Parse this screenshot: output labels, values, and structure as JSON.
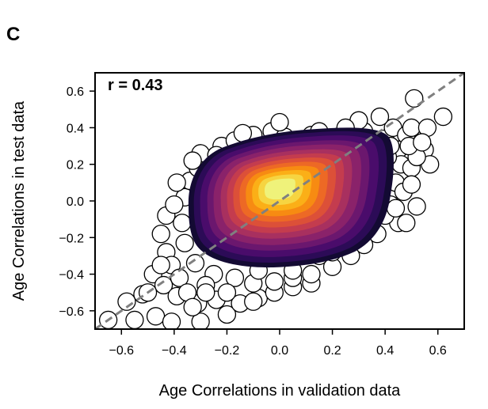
{
  "panel_label": "C",
  "chart_data": {
    "type": "scatter",
    "subtype": "scatter with filled density contours",
    "xlabel": "Age Correlations in validation data",
    "ylabel": "Age Correlations in test data",
    "xlim": [
      -0.7,
      0.7
    ],
    "ylim": [
      -0.7,
      0.7
    ],
    "xticks": [
      -0.6,
      -0.4,
      -0.2,
      0.0,
      0.2,
      0.4,
      0.6
    ],
    "yticks": [
      -0.6,
      -0.4,
      -0.2,
      0.0,
      0.2,
      0.4,
      0.6
    ],
    "xtick_labels": [
      "−0.6",
      "−0.4",
      "−0.2",
      "0.0",
      "0.2",
      "0.4",
      "0.6"
    ],
    "ytick_labels": [
      "−0.6",
      "−0.4",
      "−0.2",
      "0.0",
      "0.2",
      "0.4",
      "0.6"
    ],
    "annotation": "r = 0.43",
    "grid": false,
    "identity_line": {
      "x": [
        -0.7,
        0.7
      ],
      "y": [
        -0.7,
        0.7
      ],
      "color": "#808080",
      "style": "dashed"
    },
    "marker": {
      "face": "#ffffff",
      "edge": "#000000"
    },
    "density_colormap": "inferno",
    "points": [
      [
        -0.65,
        -0.65
      ],
      [
        -0.55,
        -0.65
      ],
      [
        -0.47,
        -0.63
      ],
      [
        -0.41,
        -0.66
      ],
      [
        -0.3,
        -0.66
      ],
      [
        -0.2,
        -0.62
      ],
      [
        -0.58,
        -0.55
      ],
      [
        -0.52,
        -0.51
      ],
      [
        -0.48,
        -0.4
      ],
      [
        -0.44,
        -0.46
      ],
      [
        -0.39,
        -0.52
      ],
      [
        -0.31,
        -0.56
      ],
      [
        -0.24,
        -0.54
      ],
      [
        -0.15,
        -0.56
      ],
      [
        -0.08,
        -0.53
      ],
      [
        -0.02,
        -0.5
      ],
      [
        0.05,
        -0.47
      ],
      [
        0.12,
        -0.45
      ],
      [
        -0.43,
        -0.28
      ],
      [
        -0.45,
        -0.18
      ],
      [
        -0.43,
        -0.08
      ],
      [
        -0.41,
        -0.35
      ],
      [
        -0.38,
        -0.42
      ],
      [
        -0.36,
        -0.23
      ],
      [
        -0.36,
        0.02
      ],
      [
        -0.37,
        -0.12
      ],
      [
        -0.34,
        0.11
      ],
      [
        -0.31,
        0.18
      ],
      [
        -0.3,
        0.26
      ],
      [
        -0.27,
        0.14
      ],
      [
        -0.25,
        0.2
      ],
      [
        -0.22,
        0.3
      ],
      [
        -0.19,
        0.24
      ],
      [
        -0.17,
        0.33
      ],
      [
        -0.12,
        0.3
      ],
      [
        -0.1,
        0.36
      ],
      [
        -0.05,
        0.3
      ],
      [
        -0.03,
        0.38
      ],
      [
        0.02,
        0.35
      ],
      [
        0.07,
        0.32
      ],
      [
        0.12,
        0.36
      ],
      [
        0.17,
        0.3
      ],
      [
        0.22,
        0.35
      ],
      [
        0.27,
        0.3
      ],
      [
        0.32,
        0.38
      ],
      [
        0.36,
        0.31
      ],
      [
        0.4,
        0.34
      ],
      [
        0.43,
        0.4
      ],
      [
        0.45,
        0.28
      ],
      [
        0.48,
        0.36
      ],
      [
        0.46,
        0.2
      ],
      [
        0.5,
        0.18
      ],
      [
        0.44,
        0.1
      ],
      [
        0.47,
        0.05
      ],
      [
        0.42,
        -0.02
      ],
      [
        0.45,
        -0.12
      ],
      [
        0.4,
        -0.08
      ],
      [
        0.37,
        -0.18
      ],
      [
        0.32,
        -0.24
      ],
      [
        0.27,
        -0.3
      ],
      [
        0.2,
        -0.36
      ],
      [
        0.12,
        -0.4
      ],
      [
        0.05,
        -0.42
      ],
      [
        -0.02,
        -0.44
      ],
      [
        -0.1,
        -0.45
      ],
      [
        -0.17,
        -0.42
      ],
      [
        -0.25,
        -0.4
      ],
      [
        -0.32,
        -0.34
      ],
      [
        -0.28,
        -0.46
      ],
      [
        -0.08,
        -0.38
      ],
      [
        0.15,
        -0.3
      ],
      [
        0.35,
        -0.1
      ],
      [
        0.3,
        0.44
      ],
      [
        0.38,
        0.46
      ],
      [
        0.5,
        0.4
      ],
      [
        0.51,
        0.56
      ],
      [
        0.56,
        0.4
      ],
      [
        0.55,
        0.28
      ],
      [
        0.57,
        0.2
      ],
      [
        0.62,
        0.46
      ],
      [
        0.52,
        0.24
      ],
      [
        0.49,
        0.3
      ],
      [
        0.41,
        0.24
      ],
      [
        0.54,
        0.32
      ],
      [
        0.48,
        -0.12
      ],
      [
        0.52,
        -0.03
      ],
      [
        0.5,
        0.09
      ],
      [
        -0.28,
        -0.5
      ],
      [
        -0.5,
        -0.5
      ],
      [
        -0.35,
        -0.5
      ],
      [
        -0.4,
        -0.02
      ],
      [
        -0.39,
        0.1
      ],
      [
        -0.33,
        0.22
      ],
      [
        -0.24,
        0.25
      ],
      [
        -0.14,
        0.37
      ],
      [
        0.0,
        0.43
      ],
      [
        0.15,
        0.38
      ],
      [
        0.25,
        0.4
      ],
      [
        -0.2,
        -0.5
      ],
      [
        -0.1,
        -0.55
      ],
      [
        0.05,
        -0.38
      ],
      [
        0.2,
        -0.28
      ],
      [
        0.42,
        0.3
      ],
      [
        0.44,
        -0.04
      ],
      [
        -0.45,
        -0.35
      ],
      [
        -0.33,
        -0.58
      ]
    ]
  }
}
